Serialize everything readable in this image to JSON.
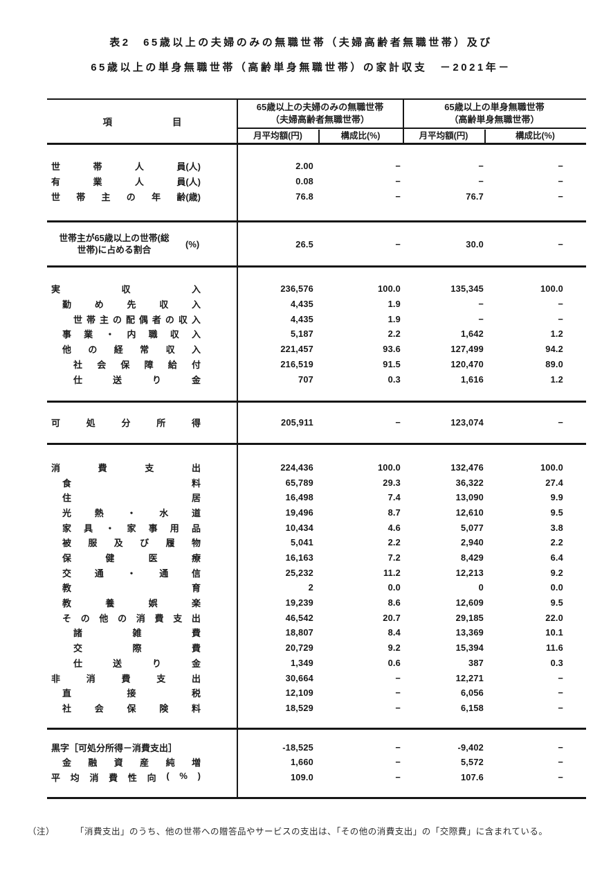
{
  "title": {
    "line1": "表2　65歳以上の夫婦のみの無職世帯（夫婦高齢者無職世帯）及び",
    "line2": "65歳以上の単身無職世帯（高齢単身無職世帯）の家計収支　－2021年－"
  },
  "header": {
    "item": "項目",
    "group1_line1": "65歳以上の夫婦のみの無職世帯",
    "group1_line2": "（夫婦高齢者無職世帯）",
    "group2_line1": "65歳以上の単身無職世帯",
    "group2_line2": "（高齢単身無職世帯）",
    "sub_headers": [
      "月平均額(円)",
      "構成比(%)",
      "月平均額(円)",
      "構成比(%)"
    ]
  },
  "sections": [
    {
      "rows": [
        {
          "label": "世帯人員",
          "unit": "(人)",
          "indent": 0,
          "just": true,
          "values": [
            "2.00",
            "−",
            "−",
            "−"
          ]
        },
        {
          "label": "有業人員",
          "unit": "(人)",
          "indent": 0,
          "just": true,
          "values": [
            "0.08",
            "−",
            "−",
            "−"
          ]
        },
        {
          "label": "世帯主の年齢",
          "unit": "(歳)",
          "indent": 0,
          "just": true,
          "values": [
            "76.8",
            "−",
            "76.7",
            "−"
          ]
        }
      ]
    },
    {
      "rows": [
        {
          "label_lines": [
            "世帯主が65歳以上の世帯(総",
            "世帯)に占める割合"
          ],
          "unit": "(%)",
          "wrap": true,
          "values": [
            "26.5",
            "−",
            "30.0",
            "−"
          ]
        }
      ]
    },
    {
      "rows": [
        {
          "label": "実収入",
          "indent": 0,
          "just": true,
          "values": [
            "236,576",
            "100.0",
            "135,345",
            "100.0"
          ]
        },
        {
          "label": "勤め先収入",
          "indent": 1,
          "just": true,
          "values": [
            "4,435",
            "1.9",
            "−",
            "−"
          ]
        },
        {
          "label": "世帯主の配偶者の収入",
          "indent": 2,
          "just": true,
          "values": [
            "4,435",
            "1.9",
            "−",
            "−"
          ]
        },
        {
          "label": "事業・内職収入",
          "indent": 1,
          "just": true,
          "values": [
            "5,187",
            "2.2",
            "1,642",
            "1.2"
          ]
        },
        {
          "label": "他の経常収入",
          "indent": 1,
          "just": true,
          "values": [
            "221,457",
            "93.6",
            "127,499",
            "94.2"
          ]
        },
        {
          "label": "社会保障給付",
          "indent": 2,
          "just": true,
          "values": [
            "216,519",
            "91.5",
            "120,470",
            "89.0"
          ]
        },
        {
          "label": "仕送り金",
          "indent": 2,
          "just": true,
          "values": [
            "707",
            "0.3",
            "1,616",
            "1.2"
          ]
        }
      ]
    },
    {
      "rows": [
        {
          "label": "可処分所得",
          "indent": 0,
          "just": true,
          "values": [
            "205,911",
            "−",
            "123,074",
            "−"
          ]
        }
      ]
    },
    {
      "rows": [
        {
          "label": "消費支出",
          "indent": 0,
          "just": true,
          "values": [
            "224,436",
            "100.0",
            "132,476",
            "100.0"
          ]
        },
        {
          "label": "食料",
          "indent": 1,
          "just": true,
          "values": [
            "65,789",
            "29.3",
            "36,322",
            "27.4"
          ]
        },
        {
          "label": "住居",
          "indent": 1,
          "just": true,
          "values": [
            "16,498",
            "7.4",
            "13,090",
            "9.9"
          ]
        },
        {
          "label": "光熱・水道",
          "indent": 1,
          "just": true,
          "values": [
            "19,496",
            "8.7",
            "12,610",
            "9.5"
          ]
        },
        {
          "label": "家具・家事用品",
          "indent": 1,
          "just": true,
          "values": [
            "10,434",
            "4.6",
            "5,077",
            "3.8"
          ]
        },
        {
          "label": "被服及び履物",
          "indent": 1,
          "just": true,
          "values": [
            "5,041",
            "2.2",
            "2,940",
            "2.2"
          ]
        },
        {
          "label": "保健医療",
          "indent": 1,
          "just": true,
          "values": [
            "16,163",
            "7.2",
            "8,429",
            "6.4"
          ]
        },
        {
          "label": "交通・通信",
          "indent": 1,
          "just": true,
          "values": [
            "25,232",
            "11.2",
            "12,213",
            "9.2"
          ]
        },
        {
          "label": "教育",
          "indent": 1,
          "just": true,
          "values": [
            "2",
            "0.0",
            "0",
            "0.0"
          ]
        },
        {
          "label": "教養娯楽",
          "indent": 1,
          "just": true,
          "values": [
            "19,239",
            "8.6",
            "12,609",
            "9.5"
          ]
        },
        {
          "label": "その他の消費支出",
          "indent": 1,
          "just": true,
          "values": [
            "46,542",
            "20.7",
            "29,185",
            "22.0"
          ]
        },
        {
          "label": "諸雑費",
          "indent": 2,
          "just": true,
          "values": [
            "18,807",
            "8.4",
            "13,369",
            "10.1"
          ]
        },
        {
          "label": "交際費",
          "indent": 2,
          "just": true,
          "values": [
            "20,729",
            "9.2",
            "15,394",
            "11.6"
          ]
        },
        {
          "label": "仕送り金",
          "indent": 2,
          "just": true,
          "values": [
            "1,349",
            "0.6",
            "387",
            "0.3"
          ]
        },
        {
          "label": "非消費支出",
          "indent": 0,
          "just": true,
          "values": [
            "30,664",
            "−",
            "12,271",
            "−"
          ]
        },
        {
          "label": "直接税",
          "indent": 1,
          "just": true,
          "values": [
            "12,109",
            "−",
            "6,056",
            "−"
          ]
        },
        {
          "label": "社会保険料",
          "indent": 1,
          "just": true,
          "values": [
            "18,529",
            "−",
            "6,158",
            "−"
          ]
        }
      ]
    },
    {
      "rows": [
        {
          "label": "黒字［可処分所得－消費支出］",
          "indent": 0,
          "just": false,
          "values": [
            "-18,525",
            "−",
            "-9,402",
            "−"
          ]
        },
        {
          "label": "金融資産純増",
          "indent": 1,
          "just": true,
          "values": [
            "1,660",
            "−",
            "5,572",
            "−"
          ]
        },
        {
          "label": "平均消費性向(%)",
          "indent": 0,
          "just": true,
          "values": [
            "109.0",
            "−",
            "107.6",
            "−"
          ]
        }
      ]
    }
  ],
  "footnote": {
    "marker": "（注）",
    "text": "「消費支出」のうち、他の世帯への贈答品やサービスの支出は、「その他の消費支出」の「交際費」に含まれている。"
  }
}
